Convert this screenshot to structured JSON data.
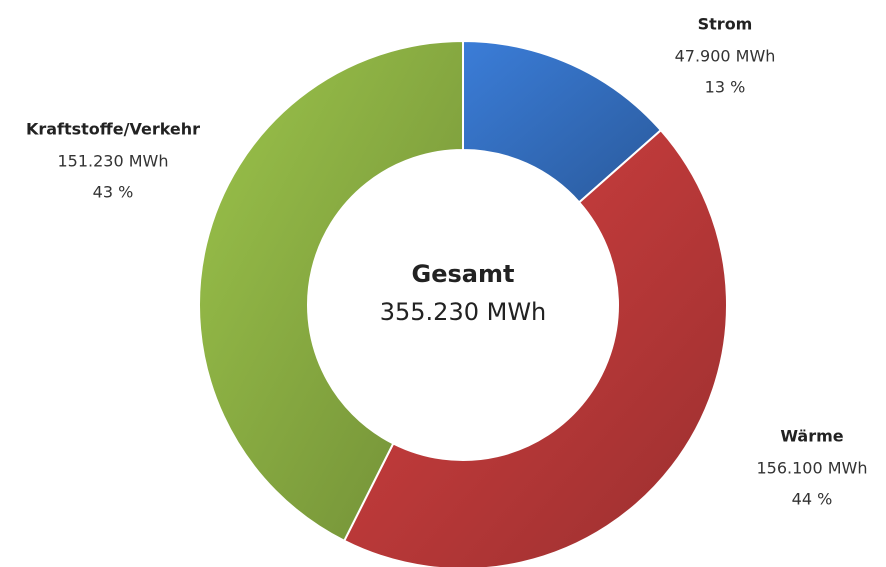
{
  "chart_data": {
    "type": "donut",
    "categories": [
      "Strom",
      "Wärme",
      "Kraftstoffe/Verkehr"
    ],
    "values": [
      47900,
      156100,
      151230
    ],
    "value_labels": [
      "47.900 MWh",
      "156.100 MWh",
      "151.230 MWh"
    ],
    "percent_labels": [
      "13 %",
      "44 %",
      "43 %"
    ],
    "colors": [
      "#3b7dd8",
      "#d64141",
      "#9cc44b"
    ],
    "center_title": "Gesamt",
    "center_label": "355.230 MWh"
  }
}
